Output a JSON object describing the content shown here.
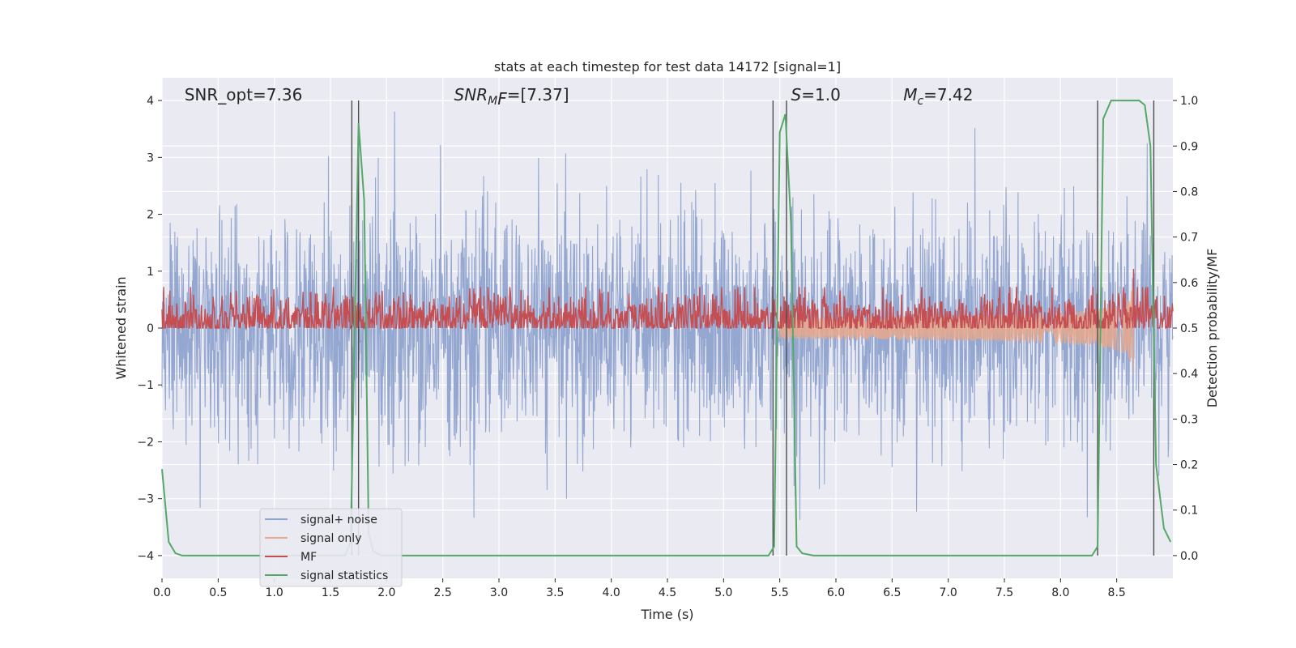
{
  "chart_data": {
    "type": "line",
    "title": "stats at each timestep for test data 14172 [signal=1]",
    "xlabel": "Time (s)",
    "ylabel_left": "Whitened strain",
    "ylabel_right": "Detection probability/MF",
    "xlim": [
      0.0,
      9.0
    ],
    "ylim_left": [
      -4.4,
      4.4
    ],
    "ylim_right": [
      -0.05,
      1.05
    ],
    "xticks": [
      "0.0",
      "0.5",
      "1.0",
      "1.5",
      "2.0",
      "2.5",
      "3.0",
      "3.5",
      "4.0",
      "4.5",
      "5.0",
      "5.5",
      "6.0",
      "6.5",
      "7.0",
      "7.5",
      "8.0",
      "8.5"
    ],
    "yticks_left": [
      "4",
      "3",
      "2",
      "1",
      "0",
      "−1",
      "−2",
      "−3",
      "−4"
    ],
    "yticks_right": [
      "1.0",
      "0.9",
      "0.8",
      "0.7",
      "0.6",
      "0.5",
      "0.4",
      "0.3",
      "0.2",
      "0.1",
      "0.0"
    ],
    "grid": true,
    "legend_position": "lower-left",
    "annotations": [
      {
        "label": "SNR_opt=7.36",
        "x": 0.2
      },
      {
        "label": "MF=[7.37]",
        "prefix": "SNR",
        "sub": "M",
        "x": 2.6
      },
      {
        "label": "=1.0",
        "prefix": "S",
        "sub": "",
        "x": 5.6
      },
      {
        "label": "=7.42",
        "prefix": "M",
        "sub": "c",
        "x": 6.6
      }
    ],
    "vertical_lines": [
      1.69,
      1.75,
      5.44,
      5.56,
      8.33,
      8.83
    ],
    "series": [
      {
        "name": "signal+ noise",
        "color": "#8fa3cf",
        "kind": "noise",
        "amplitude_std": 1.0,
        "range": [
          -4.0,
          4.0
        ]
      },
      {
        "name": "signal only",
        "color": "#e8a88c",
        "kind": "chirp",
        "start": 5.5,
        "end": 8.65,
        "peak": 1.0
      },
      {
        "name": "MF",
        "color": "#c44e52",
        "kind": "mf",
        "mean": 0.52,
        "spread": 0.03,
        "spike_x": 8.65,
        "spike_y": 0.63
      },
      {
        "name": "signal statistics",
        "color": "#55a868",
        "kind": "line",
        "x": [
          0.0,
          0.06,
          0.12,
          0.18,
          0.3,
          1.5,
          1.63,
          1.68,
          1.75,
          1.8,
          1.84,
          1.88,
          1.95,
          5.35,
          5.4,
          5.45,
          5.5,
          5.55,
          5.6,
          5.65,
          5.7,
          5.8,
          7.3,
          8.28,
          8.33,
          8.38,
          8.45,
          8.7,
          8.75,
          8.8,
          8.85,
          8.92,
          8.98
        ],
        "y": [
          0.19,
          0.03,
          0.005,
          0.0,
          0.0,
          0.0,
          0.0,
          0.03,
          0.95,
          0.78,
          0.05,
          0.01,
          0.0,
          0.0,
          0.0,
          0.02,
          0.93,
          0.97,
          0.73,
          0.02,
          0.005,
          0.0,
          0.0,
          0.0,
          0.02,
          0.96,
          1.0,
          1.0,
          0.99,
          0.9,
          0.2,
          0.06,
          0.03
        ]
      }
    ]
  }
}
